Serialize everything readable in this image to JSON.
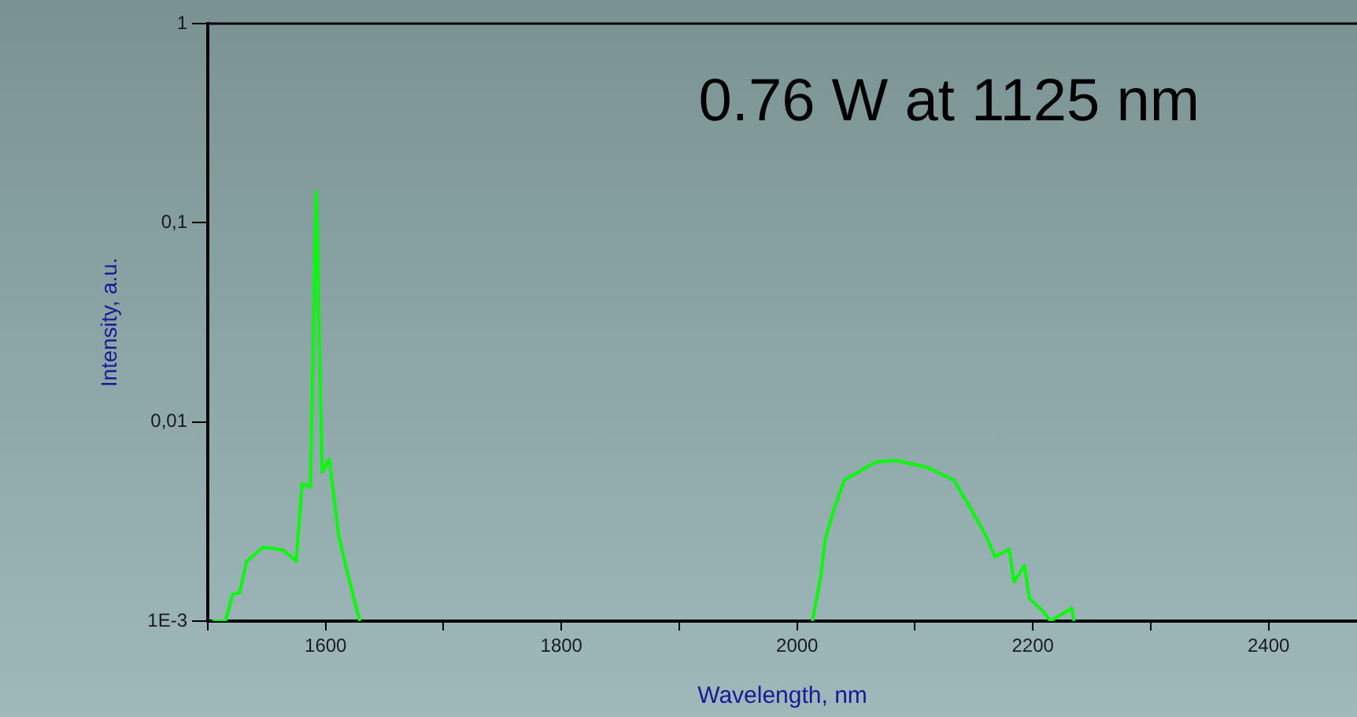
{
  "chart_data": {
    "type": "line",
    "xlabel": "Wavelength, nm",
    "ylabel": "Intensity, a.u.",
    "annotations": [
      "0.76 W at 1125 nm"
    ],
    "x": [
      1504,
      1515,
      1521,
      1527,
      1533,
      1547,
      1564,
      1575,
      1580,
      1587,
      1592,
      1597,
      1603,
      1611,
      1617,
      1624,
      1629,
      1800,
      2013,
      2020,
      2024,
      2031,
      2040,
      2067,
      2084,
      2111,
      2133,
      2148,
      2160,
      2168,
      2180,
      2184,
      2193,
      2197,
      2208,
      2215,
      2233,
      2235
    ],
    "series": [
      {
        "color": "#00ff00",
        "values": [
          0.001,
          0.001,
          0.00136,
          0.00139,
          0.002,
          0.00235,
          0.00227,
          0.002,
          0.0049,
          0.0047,
          0.143,
          0.0056,
          0.0065,
          0.0027,
          0.0019,
          0.0013,
          0.001,
          null,
          0.001,
          0.00166,
          0.0026,
          0.0036,
          0.0051,
          0.0063,
          0.0064,
          0.0059,
          0.0051,
          0.0036,
          0.0027,
          0.0021,
          0.0023,
          0.00157,
          0.0019,
          0.0013,
          0.00113,
          0.001,
          0.00116,
          0.001
        ]
      }
    ],
    "log": "y",
    "xlim": [
      1500,
      2475
    ],
    "ylim": [
      0.001,
      1
    ],
    "xticks": [
      {
        "value": 1500,
        "label": null
      },
      1600,
      {
        "value": 1700,
        "label": null
      },
      1800,
      {
        "value": 1900,
        "label": null
      },
      2000,
      {
        "value": 2100,
        "label": null
      },
      2200,
      {
        "value": 2300,
        "label": null
      },
      2400
    ],
    "yticks": [
      {
        "value": 0.001,
        "label": "1E-3"
      },
      {
        "value": 0.01,
        "label": "0,01"
      },
      {
        "value": 0.1,
        "label": "0,1"
      },
      1
    ],
    "grid": false,
    "legend": false,
    "marker": "none",
    "line_style": "solid"
  }
}
